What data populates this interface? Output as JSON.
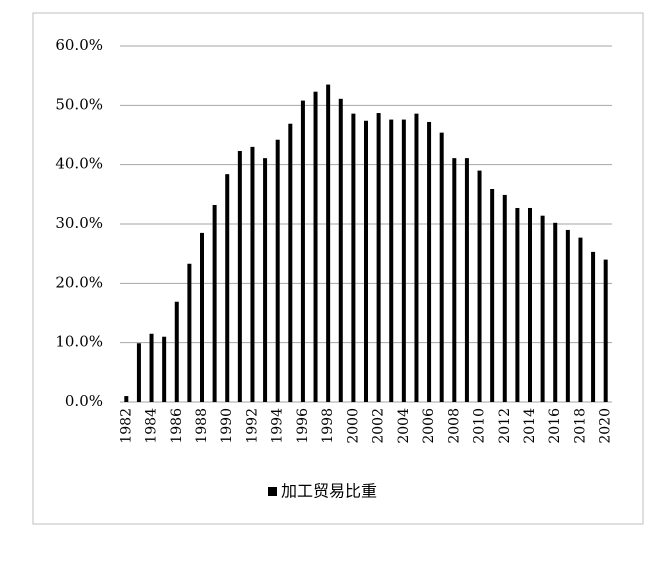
{
  "chart_data": {
    "type": "bar",
    "categories": [
      "1982",
      null,
      "1984",
      null,
      "1986",
      null,
      "1988",
      null,
      "1990",
      null,
      "1992",
      null,
      "1994",
      null,
      "1996",
      null,
      "1998",
      null,
      "2000",
      null,
      "2002",
      null,
      "2004",
      null,
      "2006",
      null,
      "2008",
      null,
      "2010",
      null,
      "2012",
      null,
      "2014",
      null,
      "2016",
      null,
      "2018",
      null,
      "2020"
    ],
    "series": [
      {
        "name": "加工贸易比重",
        "color": "#000000",
        "values": [
          1.0,
          9.9,
          11.5,
          11.0,
          16.9,
          23.3,
          28.5,
          33.2,
          38.4,
          42.3,
          43.0,
          41.1,
          44.2,
          46.9,
          50.8,
          52.3,
          53.5,
          51.1,
          48.6,
          47.4,
          48.7,
          47.6,
          47.6,
          48.6,
          47.2,
          45.4,
          41.1,
          41.1,
          39.0,
          35.9,
          34.9,
          32.7,
          32.7,
          31.4,
          30.2,
          29.0,
          27.7,
          25.3,
          24.0
        ]
      }
    ],
    "ylim": [
      0,
      60
    ],
    "yticks": [
      {
        "value": 0,
        "label": "0.0%"
      },
      {
        "value": 10,
        "label": "10.0%"
      },
      {
        "value": 20,
        "label": "20.0%"
      },
      {
        "value": 30,
        "label": "30.0%"
      },
      {
        "value": 40,
        "label": "40.0%"
      },
      {
        "value": 50,
        "label": "50.0%"
      },
      {
        "value": 60,
        "label": "60.0%"
      }
    ],
    "grid": true,
    "legend": "bottom"
  }
}
